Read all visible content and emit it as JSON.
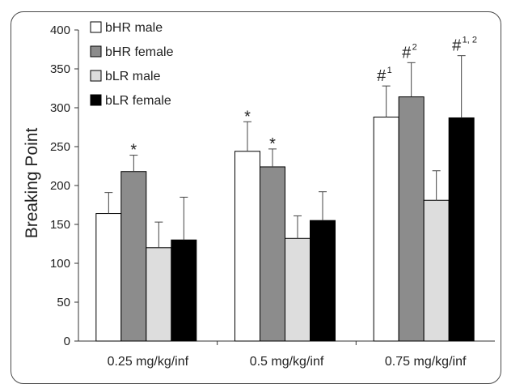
{
  "chart_data": {
    "type": "bar",
    "title": "",
    "xlabel": "",
    "ylabel": "Breaking Point",
    "ylim": [
      0,
      400
    ],
    "yticks": [
      0,
      50,
      100,
      150,
      200,
      250,
      300,
      350,
      400
    ],
    "grid": false,
    "legend_position": "top-left",
    "categories": [
      "0.25 mg/kg/inf",
      "0.5 mg/kg/inf",
      "0.75 mg/kg/inf"
    ],
    "series": [
      {
        "name": "bHR male",
        "color": "#ffffff",
        "values": [
          164,
          244,
          288
        ],
        "errors": [
          27,
          38,
          40
        ]
      },
      {
        "name": "bHR female",
        "color": "#8c8c8c",
        "values": [
          218,
          224,
          314
        ],
        "errors": [
          21,
          23,
          44
        ]
      },
      {
        "name": "bLR male",
        "color": "#dddddd",
        "values": [
          120,
          132,
          181
        ],
        "errors": [
          33,
          29,
          38
        ]
      },
      {
        "name": "bLR female",
        "color": "#000000",
        "values": [
          130,
          155,
          287
        ],
        "errors": [
          55,
          37,
          80
        ]
      }
    ],
    "annotations": [
      {
        "category": 0,
        "series": 1,
        "text": "*",
        "sup": ""
      },
      {
        "category": 1,
        "series": 0,
        "text": "*",
        "sup": ""
      },
      {
        "category": 1,
        "series": 1,
        "text": "*",
        "sup": ""
      },
      {
        "category": 2,
        "series": 0,
        "text": "#",
        "sup": "1"
      },
      {
        "category": 2,
        "series": 1,
        "text": "#",
        "sup": "2"
      },
      {
        "category": 2,
        "series": 3,
        "text": "#",
        "sup": "1, 2"
      }
    ]
  }
}
